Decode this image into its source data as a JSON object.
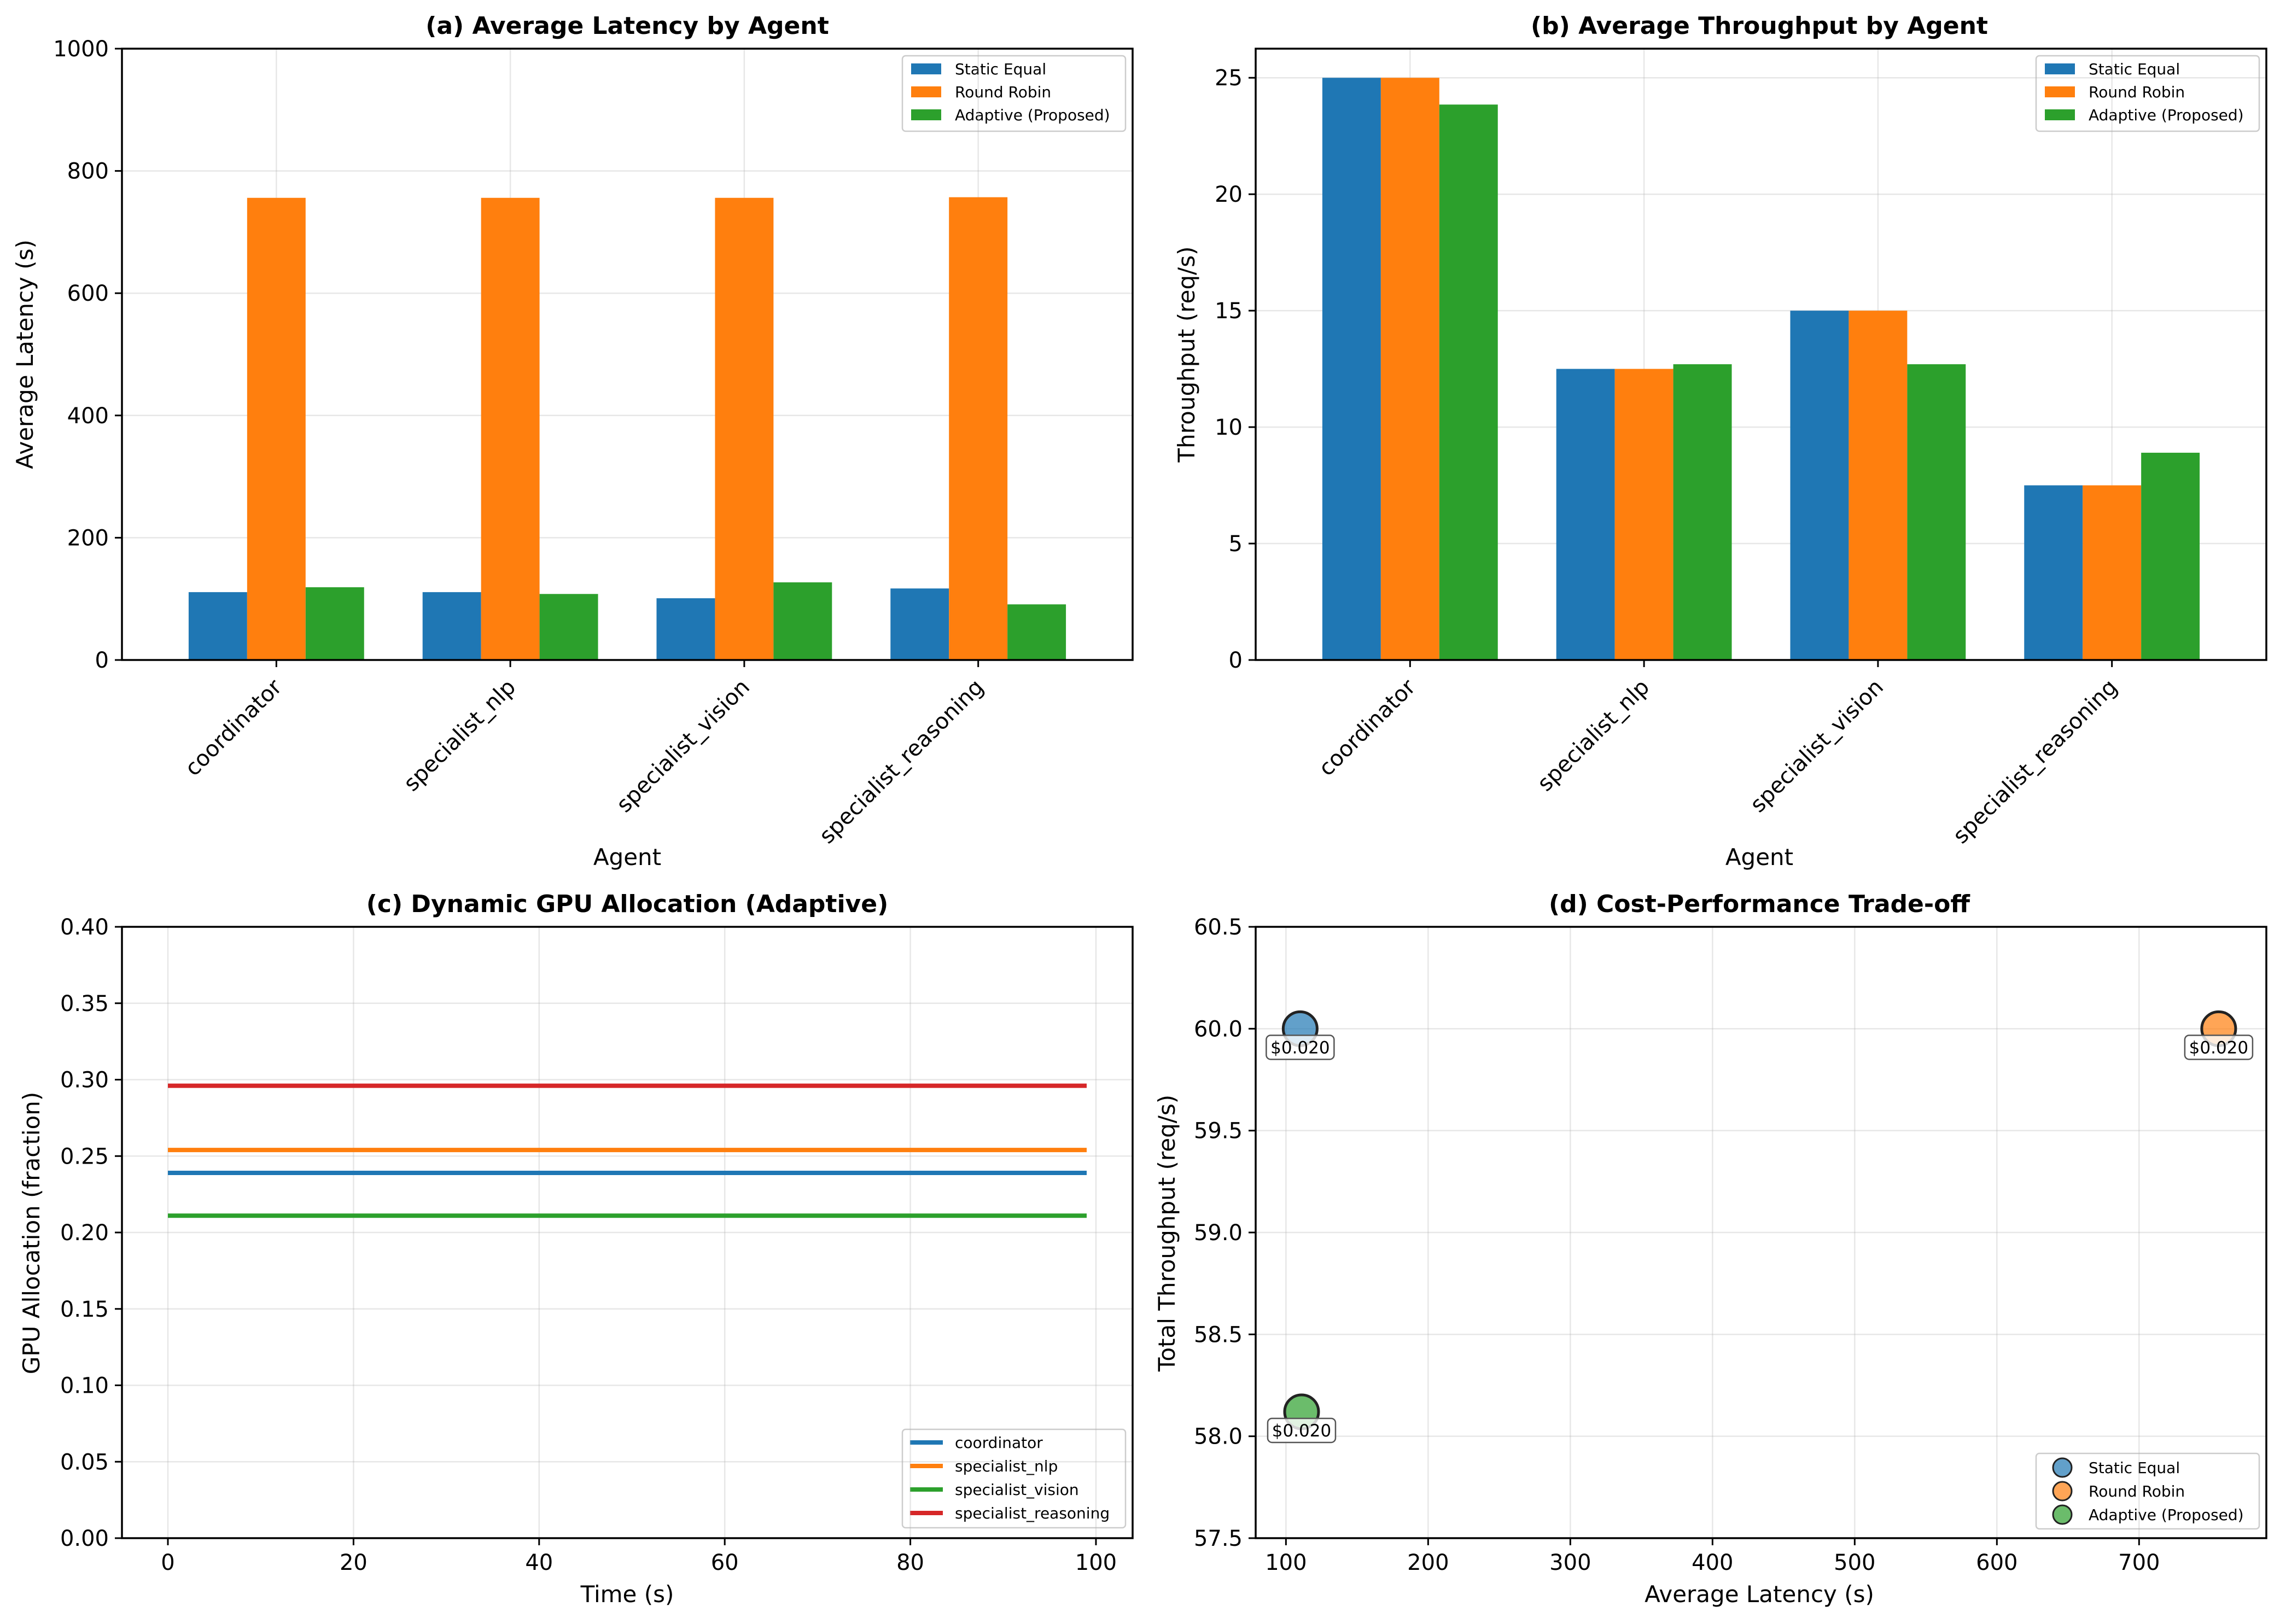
{
  "colors": {
    "static": "#1f77b4",
    "round_robin": "#ff7f0e",
    "adaptive": "#2ca02c",
    "reasoning": "#d62728"
  },
  "chart_data": [
    {
      "id": "latency",
      "type": "bar",
      "title": "(a) Average Latency by Agent",
      "xlabel": "Agent",
      "ylabel": "Average Latency (s)",
      "ylim": [
        0,
        1000
      ],
      "yticks": [
        "0",
        "200",
        "400",
        "600",
        "800",
        "1000"
      ],
      "categories": [
        "coordinator",
        "specialist_nlp",
        "specialist_vision",
        "specialist_reasoning"
      ],
      "series": [
        {
          "name": "Static Equal",
          "color": "#1f77b4",
          "values": [
            111,
            111,
            101,
            117
          ]
        },
        {
          "name": "Round Robin",
          "color": "#ff7f0e",
          "values": [
            756,
            756,
            756,
            757
          ]
        },
        {
          "name": "Adaptive (Proposed)",
          "color": "#2ca02c",
          "values": [
            119,
            108,
            127,
            91
          ]
        }
      ],
      "legend": "top-right",
      "grid": true
    },
    {
      "id": "throughput",
      "type": "bar",
      "title": "(b) Average Throughput by Agent",
      "xlabel": "Agent",
      "ylabel": "Throughput (req/s)",
      "ylim": [
        0,
        26.25
      ],
      "yticks": [
        "0",
        "5",
        "10",
        "15",
        "20",
        "25"
      ],
      "categories": [
        "coordinator",
        "specialist_nlp",
        "specialist_vision",
        "specialist_reasoning"
      ],
      "series": [
        {
          "name": "Static Equal",
          "color": "#1f77b4",
          "values": [
            25.0,
            12.5,
            15.0,
            7.5
          ]
        },
        {
          "name": "Round Robin",
          "color": "#ff7f0e",
          "values": [
            25.0,
            12.5,
            15.0,
            7.5
          ]
        },
        {
          "name": "Adaptive (Proposed)",
          "color": "#2ca02c",
          "values": [
            23.85,
            12.7,
            12.7,
            8.9
          ]
        }
      ],
      "legend": "top-right",
      "grid": true
    },
    {
      "id": "allocation",
      "type": "line",
      "title": "(c) Dynamic GPU Allocation (Adaptive)",
      "xlabel": "Time (s)",
      "ylabel": "GPU Allocation (fraction)",
      "xlim": [
        -4.95,
        103.95
      ],
      "ylim": [
        0,
        0.4
      ],
      "xticks": [
        "0",
        "20",
        "40",
        "60",
        "80",
        "100"
      ],
      "yticks": [
        "0.00",
        "0.05",
        "0.10",
        "0.15",
        "0.20",
        "0.25",
        "0.30",
        "0.35",
        "0.40"
      ],
      "x": [
        0,
        99
      ],
      "series": [
        {
          "name": "coordinator",
          "color": "#1f77b4",
          "values": [
            0.239,
            0.239
          ]
        },
        {
          "name": "specialist_nlp",
          "color": "#ff7f0e",
          "values": [
            0.254,
            0.254
          ]
        },
        {
          "name": "specialist_vision",
          "color": "#2ca02c",
          "values": [
            0.211,
            0.211
          ]
        },
        {
          "name": "specialist_reasoning",
          "color": "#d62728",
          "values": [
            0.296,
            0.296
          ]
        }
      ],
      "legend": "bottom-right",
      "grid": true
    },
    {
      "id": "tradeoff",
      "type": "scatter",
      "title": "(d) Cost-Performance Trade-off",
      "xlabel": "Average Latency (s)",
      "ylabel": "Total Throughput (req/s)",
      "xlim": [
        78.7,
        789.5
      ],
      "ylim": [
        57.5,
        60.5
      ],
      "xticks": [
        "100",
        "200",
        "300",
        "400",
        "500",
        "600",
        "700"
      ],
      "yticks": [
        "57.5",
        "58.0",
        "58.5",
        "59.0",
        "59.5",
        "60.0",
        "60.5"
      ],
      "series": [
        {
          "name": "Static Equal",
          "color": "#1f77b4",
          "x": 110,
          "y": 60.0,
          "label": "$0.020"
        },
        {
          "name": "Round Robin",
          "color": "#ff7f0e",
          "x": 756,
          "y": 60.0,
          "label": "$0.020"
        },
        {
          "name": "Adaptive (Proposed)",
          "color": "#2ca02c",
          "x": 111,
          "y": 58.12,
          "label": "$0.020"
        }
      ],
      "legend": "bottom-right",
      "grid": true
    }
  ]
}
